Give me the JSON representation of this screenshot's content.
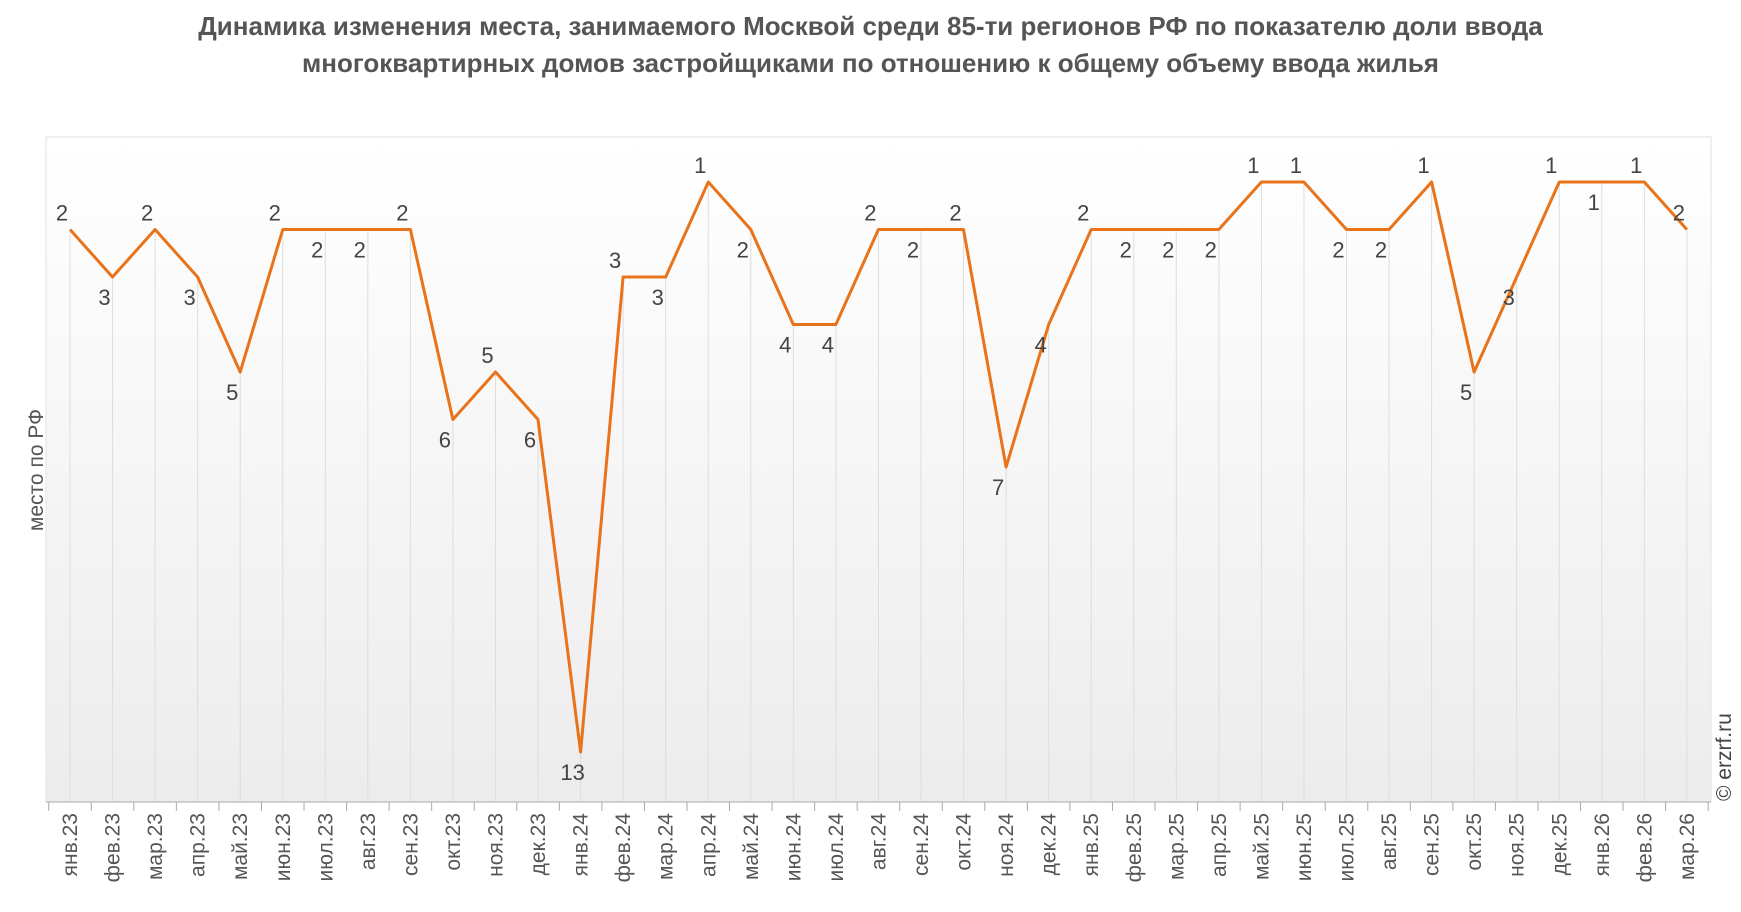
{
  "chart_data": {
    "type": "line",
    "title": "Динамика изменения места, занимаемого Москвой среди 85-ти регионов РФ по показателю доли ввода многоквартирных домов застройщиками по отношению к общему объему ввода жилья",
    "xlabel": "",
    "ylabel": "место по РФ",
    "y_reversed": true,
    "ylim": [
      0,
      14
    ],
    "grid": "vertical",
    "categories": [
      "янв.23",
      "фев.23",
      "мар.23",
      "апр.23",
      "май.23",
      "июн.23",
      "июл.23",
      "авг.23",
      "сен.23",
      "окт.23",
      "ноя.23",
      "дек.23",
      "янв.24",
      "фев.24",
      "мар.24",
      "апр.24",
      "май.24",
      "июн.24",
      "июл.24",
      "авг.24",
      "сен.24",
      "окт.24",
      "ноя.24",
      "дек.24",
      "янв.25",
      "фев.25",
      "мар.25",
      "апр.25",
      "май.25",
      "июн.25",
      "июл.25",
      "авг.25",
      "сен.25",
      "окт.25",
      "ноя.25",
      "дек.25",
      "янв.26",
      "фев.26",
      "мар.26"
    ],
    "series": [
      {
        "values": [
          2,
          3,
          2,
          3,
          5,
          2,
          2,
          2,
          2,
          6,
          5,
          6,
          13,
          3,
          3,
          1,
          2,
          4,
          4,
          2,
          2,
          2,
          7,
          4,
          2,
          2,
          2,
          2,
          1,
          1,
          2,
          2,
          1,
          5,
          3,
          1,
          1,
          1,
          2
        ]
      }
    ],
    "line_color": "#E8731A"
  },
  "watermark": "© erzrf.ru"
}
